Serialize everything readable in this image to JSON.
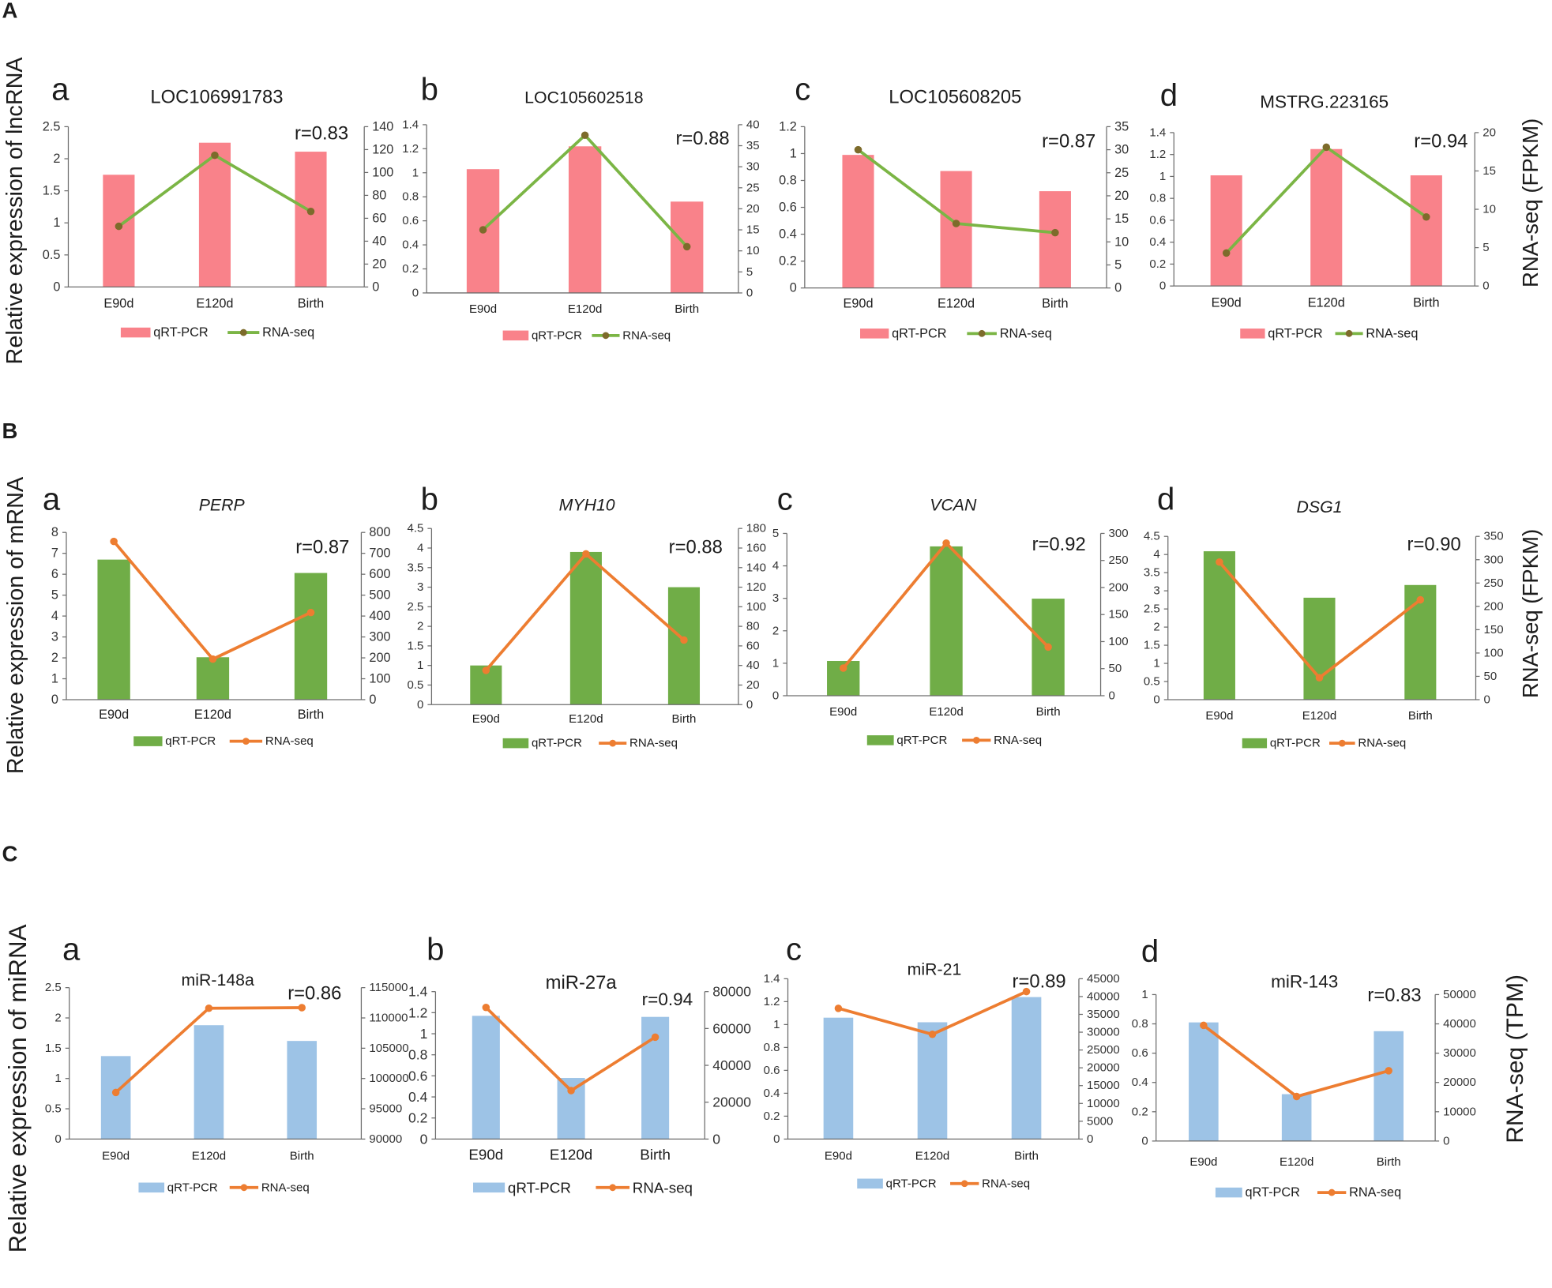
{
  "panels": [
    {
      "letter": "A",
      "ylabel_left": "Relative expression of lncRNA",
      "ylabel_right": "RNA-seq (FPKM)"
    },
    {
      "letter": "B",
      "ylabel_left": "Relative expression of mRNA",
      "ylabel_right": "RNA-seq (FPKM)"
    },
    {
      "letter": "C",
      "ylabel_left": "Relative expression of miRNA",
      "ylabel_right": "RNA-seq (TPM)"
    }
  ],
  "chart_data": [
    {
      "type": "bar",
      "label": "a",
      "title": "LOC106991783",
      "annotation": "r=0.83",
      "categories": [
        "E90d",
        "E120d",
        "Birth"
      ],
      "series": [
        {
          "name": "qRT-PCR",
          "type": "bar",
          "values": [
            1.75,
            2.25,
            2.11
          ],
          "color": "#F9828A"
        },
        {
          "name": "RNA-seq",
          "type": "line",
          "values": [
            53,
            115,
            66
          ],
          "color": "#7BB545",
          "marker_color": "#7D6B2B"
        }
      ],
      "y_left": {
        "lim": [
          0,
          2.5
        ],
        "ticks": [
          0,
          0.5,
          1,
          1.5,
          2,
          2.5
        ]
      },
      "y_right": {
        "lim": [
          0,
          140
        ],
        "ticks": [
          0,
          20,
          40,
          60,
          80,
          100,
          120,
          140
        ]
      }
    },
    {
      "type": "bar",
      "label": "b",
      "title": "LOC105602518",
      "annotation": "r=0.88",
      "categories": [
        "E90d",
        "E120d",
        "Birth"
      ],
      "series": [
        {
          "name": "qRT-PCR",
          "type": "bar",
          "values": [
            1.03,
            1.22,
            0.76
          ],
          "color": "#F9828A"
        },
        {
          "name": "RNA-seq",
          "type": "line",
          "values": [
            15,
            37.5,
            11
          ],
          "color": "#7BB545",
          "marker_color": "#7D6B2B"
        }
      ],
      "y_left": {
        "lim": [
          0,
          1.4
        ],
        "ticks": [
          0,
          0.2,
          0.4,
          0.6,
          0.8,
          1,
          1.2,
          1.4
        ]
      },
      "y_right": {
        "lim": [
          0,
          40
        ],
        "ticks": [
          0,
          5,
          10,
          15,
          20,
          25,
          30,
          35,
          40
        ]
      }
    },
    {
      "type": "bar",
      "label": "c",
      "title": "LOC105608205",
      "annotation": "r=0.87",
      "categories": [
        "E90d",
        "E120d",
        "Birth"
      ],
      "series": [
        {
          "name": "qRT-PCR",
          "type": "bar",
          "values": [
            0.99,
            0.87,
            0.72
          ],
          "color": "#F9828A"
        },
        {
          "name": "RNA-seq",
          "type": "line",
          "values": [
            30,
            14,
            12
          ],
          "color": "#7BB545",
          "marker_color": "#7D6B2B"
        }
      ],
      "y_left": {
        "lim": [
          0,
          1.2
        ],
        "ticks": [
          0,
          0.2,
          0.4,
          0.6,
          0.8,
          1,
          1.2
        ]
      },
      "y_right": {
        "lim": [
          0,
          35
        ],
        "ticks": [
          0,
          5,
          10,
          15,
          20,
          25,
          30,
          35
        ]
      }
    },
    {
      "type": "bar",
      "label": "d",
      "title": "MSTRG.223165",
      "annotation": "r=0.94",
      "categories": [
        "E90d",
        "E120d",
        "Birth"
      ],
      "series": [
        {
          "name": "qRT-PCR",
          "type": "bar",
          "values": [
            1.01,
            1.25,
            1.01
          ],
          "color": "#F9828A"
        },
        {
          "name": "RNA-seq",
          "type": "line",
          "values": [
            4.3,
            18.1,
            9
          ],
          "color": "#7BB545",
          "marker_color": "#7D6B2B"
        }
      ],
      "y_left": {
        "lim": [
          0,
          1.4
        ],
        "ticks": [
          0,
          0.2,
          0.4,
          0.6,
          0.8,
          1,
          1.2,
          1.4
        ]
      },
      "y_right": {
        "lim": [
          0,
          20
        ],
        "ticks": [
          0,
          5,
          10,
          15,
          20
        ]
      }
    },
    {
      "type": "bar",
      "label": "a",
      "title": "PERP",
      "annotation": "r=0.87",
      "categories": [
        "E90d",
        "E120d",
        "Birth"
      ],
      "series": [
        {
          "name": "qRT-PCR",
          "type": "bar",
          "values": [
            6.7,
            2.03,
            6.06
          ],
          "color": "#70AD47"
        },
        {
          "name": "RNA-seq",
          "type": "line",
          "values": [
            757,
            194,
            417
          ],
          "color": "#ED7D31",
          "marker_color": "#ED7D31"
        }
      ],
      "y_left": {
        "lim": [
          0,
          8
        ],
        "ticks": [
          0,
          1,
          2,
          3,
          4,
          5,
          6,
          7,
          8
        ]
      },
      "y_right": {
        "lim": [
          0,
          800
        ],
        "ticks": [
          0,
          100,
          200,
          300,
          400,
          500,
          600,
          700,
          800
        ]
      }
    },
    {
      "type": "bar",
      "label": "b",
      "title": "MYH10",
      "annotation": "r=0.88",
      "categories": [
        "E90d",
        "E120d",
        "Birth"
      ],
      "series": [
        {
          "name": "qRT-PCR",
          "type": "bar",
          "values": [
            1.0,
            3.9,
            3.0
          ],
          "color": "#70AD47"
        },
        {
          "name": "RNA-seq",
          "type": "line",
          "values": [
            35,
            154,
            66
          ],
          "color": "#ED7D31",
          "marker_color": "#ED7D31"
        }
      ],
      "y_left": {
        "lim": [
          0,
          4.5
        ],
        "ticks": [
          0,
          0.5,
          1,
          1.5,
          2,
          2.5,
          3,
          3.5,
          4,
          4.5
        ]
      },
      "y_right": {
        "lim": [
          0,
          180
        ],
        "ticks": [
          0,
          20,
          40,
          60,
          80,
          100,
          120,
          140,
          160,
          180
        ]
      }
    },
    {
      "type": "bar",
      "label": "c",
      "title": "VCAN",
      "annotation": "r=0.92",
      "categories": [
        "E90d",
        "E120d",
        "Birth"
      ],
      "series": [
        {
          "name": "qRT-PCR",
          "type": "bar",
          "values": [
            1.07,
            4.6,
            2.99
          ],
          "color": "#70AD47"
        },
        {
          "name": "RNA-seq",
          "type": "line",
          "values": [
            51,
            282,
            90
          ],
          "color": "#ED7D31",
          "marker_color": "#ED7D31"
        }
      ],
      "y_left": {
        "lim": [
          0,
          5
        ],
        "ticks": [
          0,
          1,
          2,
          3,
          4,
          5
        ]
      },
      "y_right": {
        "lim": [
          0,
          300
        ],
        "ticks": [
          0,
          50,
          100,
          150,
          200,
          250,
          300
        ]
      }
    },
    {
      "type": "bar",
      "label": "d",
      "title": "DSG1",
      "annotation": "r=0.90",
      "categories": [
        "E90d",
        "E120d",
        "Birth"
      ],
      "series": [
        {
          "name": "qRT-PCR",
          "type": "bar",
          "values": [
            4.09,
            2.81,
            3.16
          ],
          "color": "#70AD47"
        },
        {
          "name": "RNA-seq",
          "type": "line",
          "values": [
            295,
            47,
            214
          ],
          "color": "#ED7D31",
          "marker_color": "#ED7D31"
        }
      ],
      "y_left": {
        "lim": [
          0,
          4.5
        ],
        "ticks": [
          0,
          0.5,
          1,
          1.5,
          2,
          2.5,
          3,
          3.5,
          4,
          4.5
        ]
      },
      "y_right": {
        "lim": [
          0,
          350
        ],
        "ticks": [
          0,
          50,
          100,
          150,
          200,
          250,
          300,
          350
        ]
      }
    },
    {
      "type": "bar",
      "label": "a",
      "title": "miR-148a",
      "annotation": "r=0.86",
      "categories": [
        "E90d",
        "E120d",
        "Birth"
      ],
      "series": [
        {
          "name": "qRT-PCR",
          "type": "bar",
          "values": [
            1.37,
            1.88,
            1.62
          ],
          "color": "#9DC3E6"
        },
        {
          "name": "RNA-seq",
          "type": "line",
          "values": [
            97700,
            111600,
            111700
          ],
          "color": "#ED7D31",
          "marker_color": "#ED7D31"
        }
      ],
      "y_left": {
        "lim": [
          0,
          2.5
        ],
        "ticks": [
          0,
          0.5,
          1,
          1.5,
          2,
          2.5
        ]
      },
      "y_right": {
        "lim": [
          90000,
          115000
        ],
        "ticks": [
          90000,
          95000,
          100000,
          105000,
          110000,
          115000
        ]
      }
    },
    {
      "type": "bar",
      "label": "b",
      "title": "miR-27a",
      "annotation": "r=0.94",
      "categories": [
        "E90d",
        "E120d",
        "Birth"
      ],
      "series": [
        {
          "name": "qRT-PCR",
          "type": "bar",
          "values": [
            1.17,
            0.58,
            1.16
          ],
          "color": "#9DC3E6"
        },
        {
          "name": "RNA-seq",
          "type": "line",
          "values": [
            71400,
            26300,
            55300
          ],
          "color": "#ED7D31",
          "marker_color": "#ED7D31"
        }
      ],
      "y_left": {
        "lim": [
          0,
          1.4
        ],
        "ticks": [
          0,
          0.2,
          0.4,
          0.6,
          0.8,
          1,
          1.2,
          1.4
        ]
      },
      "y_right": {
        "lim": [
          0,
          80000
        ],
        "ticks": [
          0,
          20000,
          40000,
          60000,
          80000
        ]
      }
    },
    {
      "type": "bar",
      "label": "c",
      "title": "miR-21",
      "annotation": "r=0.89",
      "categories": [
        "E90d",
        "E120d",
        "Birth"
      ],
      "series": [
        {
          "name": "qRT-PCR",
          "type": "bar",
          "values": [
            1.06,
            1.02,
            1.24
          ],
          "color": "#9DC3E6"
        },
        {
          "name": "RNA-seq",
          "type": "line",
          "values": [
            36700,
            29400,
            41400
          ],
          "color": "#ED7D31",
          "marker_color": "#ED7D31"
        }
      ],
      "y_left": {
        "lim": [
          0,
          1.4
        ],
        "ticks": [
          0,
          0.2,
          0.4,
          0.6,
          0.8,
          1,
          1.2,
          1.4
        ]
      },
      "y_right": {
        "lim": [
          0,
          45000
        ],
        "ticks": [
          0,
          5000,
          10000,
          15000,
          20000,
          25000,
          30000,
          35000,
          40000,
          45000
        ]
      }
    },
    {
      "type": "bar",
      "label": "d",
      "title": "miR-143",
      "annotation": "r=0.83",
      "categories": [
        "E90d",
        "E120d",
        "Birth"
      ],
      "series": [
        {
          "name": "qRT-PCR",
          "type": "bar",
          "values": [
            0.81,
            0.32,
            0.75
          ],
          "color": "#9DC3E6"
        },
        {
          "name": "RNA-seq",
          "type": "line",
          "values": [
            39500,
            15200,
            24000
          ],
          "color": "#ED7D31",
          "marker_color": "#ED7D31"
        }
      ],
      "y_left": {
        "lim": [
          0,
          1
        ],
        "ticks": [
          0,
          0.2,
          0.4,
          0.6,
          0.8,
          1
        ]
      },
      "y_right": {
        "lim": [
          0,
          50000
        ],
        "ticks": [
          0,
          10000,
          20000,
          30000,
          40000,
          50000
        ]
      }
    }
  ]
}
